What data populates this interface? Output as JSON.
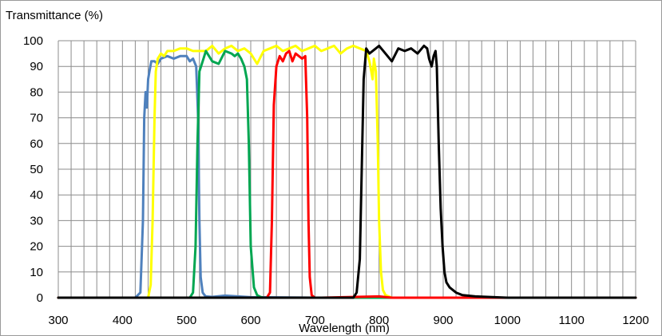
{
  "chart_data": {
    "type": "line",
    "title": "",
    "ylabel": "Transmittance (%)",
    "xlabel": "Wavelength (nm)",
    "xlim": [
      300,
      1200
    ],
    "ylim": [
      0,
      100
    ],
    "x_ticks": [
      300,
      400,
      500,
      600,
      700,
      800,
      900,
      1000,
      1100,
      1200
    ],
    "y_ticks": [
      0,
      10,
      20,
      30,
      40,
      50,
      60,
      70,
      80,
      90,
      100
    ],
    "grid": true,
    "x_minor_step": 20,
    "series": [
      {
        "color": "#4f81bd",
        "x": [
          300,
          420,
          428,
          432,
          434,
          436,
          438,
          440,
          442,
          445,
          450,
          455,
          460,
          470,
          480,
          490,
          500,
          505,
          510,
          515,
          518,
          520,
          522,
          525,
          528,
          530,
          540,
          560,
          600,
          700,
          800,
          900,
          1200
        ],
        "y": [
          0,
          0,
          2,
          30,
          70,
          80,
          74,
          85,
          88,
          92,
          92,
          91,
          93,
          94,
          93,
          94,
          94,
          92,
          93,
          90,
          70,
          30,
          8,
          2,
          1,
          0.5,
          0.3,
          0.8,
          0.2,
          0,
          0,
          0,
          0
        ]
      },
      {
        "color": "#ffff00",
        "x": [
          300,
          440,
          444,
          447,
          450,
          452,
          455,
          460,
          465,
          470,
          480,
          490,
          500,
          510,
          520,
          530,
          540,
          550,
          560,
          570,
          580,
          590,
          600,
          610,
          620,
          630,
          640,
          650,
          660,
          670,
          680,
          690,
          700,
          710,
          720,
          730,
          740,
          750,
          760,
          770,
          780,
          785,
          788,
          790,
          792,
          795,
          798,
          800,
          803,
          806,
          810,
          815,
          820,
          1200
        ],
        "y": [
          0,
          0,
          5,
          30,
          70,
          88,
          93,
          95,
          94,
          96,
          96,
          97,
          97,
          96,
          96,
          96,
          98,
          95,
          97,
          98,
          96,
          97,
          95,
          91,
          96,
          97,
          98,
          96,
          97,
          98,
          96,
          97,
          98,
          96,
          97,
          98,
          95,
          97,
          98,
          97,
          96,
          92,
          88,
          85,
          93,
          88,
          60,
          30,
          10,
          3,
          1,
          0.5,
          0,
          0
        ]
      },
      {
        "color": "#00a651",
        "x": [
          300,
          505,
          510,
          514,
          517,
          520,
          525,
          530,
          540,
          550,
          560,
          570,
          575,
          580,
          585,
          590,
          594,
          597,
          600,
          605,
          610,
          615,
          620,
          1200
        ],
        "y": [
          0,
          0,
          2,
          20,
          60,
          88,
          92,
          96,
          92,
          91,
          96,
          95,
          94,
          95,
          93,
          90,
          85,
          60,
          20,
          4,
          1,
          0.3,
          0,
          0
        ]
      },
      {
        "color": "#ff0000",
        "x": [
          300,
          625,
          630,
          633,
          636,
          640,
          645,
          650,
          655,
          660,
          665,
          670,
          675,
          680,
          685,
          688,
          690,
          692,
          695,
          700,
          710,
          800,
          820,
          1200
        ],
        "y": [
          0,
          0,
          2,
          30,
          75,
          90,
          94,
          92,
          95,
          96,
          92,
          95,
          94,
          93,
          94,
          70,
          30,
          8,
          1,
          0,
          0,
          0.5,
          0,
          0
        ]
      },
      {
        "color": "#000000",
        "x": [
          300,
          760,
          765,
          770,
          773,
          776,
          780,
          785,
          790,
          800,
          810,
          820,
          830,
          840,
          850,
          860,
          870,
          875,
          878,
          882,
          885,
          888,
          890,
          893,
          896,
          899,
          902,
          905,
          910,
          920,
          930,
          950,
          980,
          1000,
          1200
        ],
        "y": [
          0,
          0,
          2,
          15,
          50,
          85,
          97,
          95,
          96,
          98,
          95,
          92,
          97,
          96,
          97,
          95,
          98,
          97,
          93,
          90,
          94,
          96,
          90,
          60,
          35,
          20,
          10,
          6,
          4,
          2,
          1,
          0.5,
          0.2,
          0,
          0
        ]
      }
    ]
  }
}
